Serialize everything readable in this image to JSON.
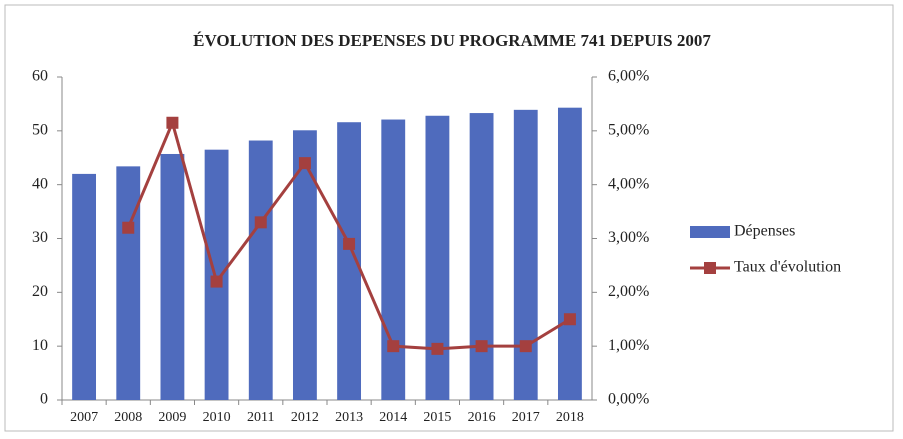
{
  "chart_data": {
    "type": "bar",
    "title": "ÉVOLUTION DES DEPENSES DU PROGRAMME 741 DEPUIS 2007",
    "categories": [
      "2007",
      "2008",
      "2009",
      "2010",
      "2011",
      "2012",
      "2013",
      "2014",
      "2015",
      "2016",
      "2017",
      "2018"
    ],
    "series": [
      {
        "name": "Dépenses",
        "color": "#4f6bbd",
        "values": [
          42,
          43.4,
          45.7,
          46.5,
          48.2,
          50.1,
          51.6,
          52.1,
          52.8,
          53.3,
          53.9,
          54.3
        ]
      },
      {
        "name": "Taux d'évolution",
        "color": "#a4403f",
        "axis": "y2",
        "values": [
          null,
          3.2,
          5.15,
          2.2,
          3.3,
          4.4,
          2.9,
          1.0,
          0.95,
          1.0,
          1.0,
          1.5
        ]
      }
    ],
    "ylim": [
      0,
      60
    ],
    "yticks": [
      0,
      10,
      20,
      30,
      40,
      50,
      60
    ],
    "y2lim": [
      0,
      6
    ],
    "y2ticks": [
      {
        "value": 0,
        "label": "0,00%"
      },
      {
        "value": 1,
        "label": "1,00%"
      },
      {
        "value": 2,
        "label": "2,00%"
      },
      {
        "value": 3,
        "label": "3,00%"
      },
      {
        "value": 4,
        "label": "4,00%"
      },
      {
        "value": 5,
        "label": "5,00%"
      },
      {
        "value": 6,
        "label": "6,00%"
      }
    ],
    "grid": false,
    "legend": "right"
  }
}
